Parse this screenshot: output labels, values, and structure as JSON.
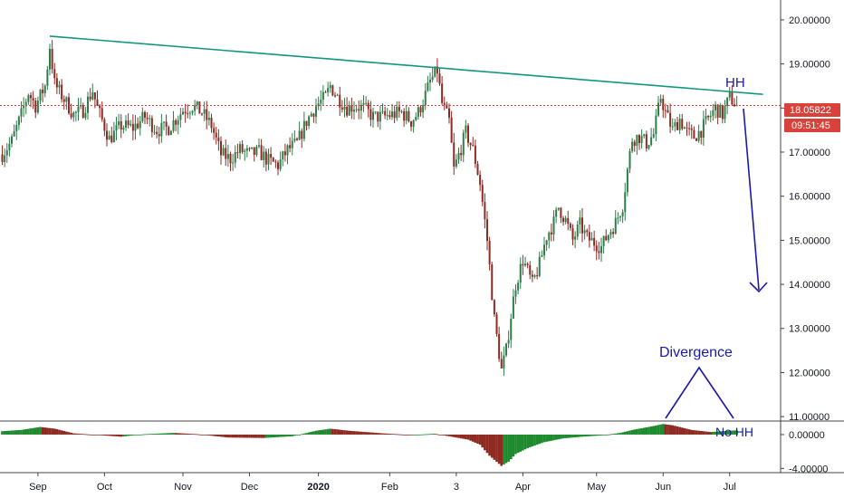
{
  "colors": {
    "up": "#2e7d4a",
    "down": "#8e2a22",
    "trendline": "#13977c",
    "annotation": "#1a1aa8",
    "price_line": "#d9423a",
    "osc_up": "#1e8a2e",
    "osc_down": "#8e2a22",
    "axis_line": "#444444"
  },
  "chart_data": {
    "type": "candlestick",
    "price_axis": {
      "ticks": [
        "20.00000",
        "19.00000",
        "18.00000",
        "17.00000",
        "16.00000",
        "15.00000",
        "14.00000",
        "13.00000",
        "12.00000",
        "11.00000"
      ],
      "ylim": [
        10.9,
        20.45
      ]
    },
    "oscillator_axis": {
      "ticks": [
        "0.00000",
        "-4.00000"
      ],
      "ylim": [
        -4.5,
        1.6
      ]
    },
    "time_axis": {
      "labels": [
        "Sep",
        "Oct",
        "Nov",
        "Dec",
        "2020",
        "Feb",
        "3",
        "Apr",
        "May",
        "Jun",
        "Jul"
      ],
      "bold": [
        "2020"
      ]
    },
    "current_price": "18.05822",
    "countdown": "09:51:45",
    "key_points": [
      {
        "t": 0,
        "v": 16.95
      },
      {
        "t": 4,
        "v": 17.25
      },
      {
        "t": 8,
        "v": 17.85
      },
      {
        "t": 11,
        "v": 18.35
      },
      {
        "t": 14,
        "v": 18.05
      },
      {
        "t": 18,
        "v": 18.5
      },
      {
        "t": 20,
        "v": 19.4
      },
      {
        "t": 22,
        "v": 18.55
      },
      {
        "t": 26,
        "v": 18.2
      },
      {
        "t": 30,
        "v": 17.85
      },
      {
        "t": 34,
        "v": 17.95
      },
      {
        "t": 38,
        "v": 18.4
      },
      {
        "t": 40,
        "v": 18.0
      },
      {
        "t": 45,
        "v": 17.3
      },
      {
        "t": 50,
        "v": 17.6
      },
      {
        "t": 55,
        "v": 17.55
      },
      {
        "t": 60,
        "v": 17.8
      },
      {
        "t": 65,
        "v": 17.5
      },
      {
        "t": 70,
        "v": 17.55
      },
      {
        "t": 76,
        "v": 17.95
      },
      {
        "t": 80,
        "v": 18.05
      },
      {
        "t": 84,
        "v": 17.9
      },
      {
        "t": 88,
        "v": 17.6
      },
      {
        "t": 92,
        "v": 16.95
      },
      {
        "t": 96,
        "v": 16.85
      },
      {
        "t": 100,
        "v": 17.05
      },
      {
        "t": 104,
        "v": 16.95
      },
      {
        "t": 108,
        "v": 17.0
      },
      {
        "t": 112,
        "v": 16.8
      },
      {
        "t": 116,
        "v": 16.7
      },
      {
        "t": 120,
        "v": 17.05
      },
      {
        "t": 124,
        "v": 17.2
      },
      {
        "t": 128,
        "v": 17.7
      },
      {
        "t": 132,
        "v": 18.05
      },
      {
        "t": 136,
        "v": 18.25
      },
      {
        "t": 138,
        "v": 18.5
      },
      {
        "t": 141,
        "v": 18.25
      },
      {
        "t": 145,
        "v": 18.0
      },
      {
        "t": 148,
        "v": 18.05
      },
      {
        "t": 152,
        "v": 18.0
      },
      {
        "t": 156,
        "v": 17.8
      },
      {
        "t": 160,
        "v": 17.8
      },
      {
        "t": 164,
        "v": 17.85
      },
      {
        "t": 168,
        "v": 17.9
      },
      {
        "t": 172,
        "v": 17.7
      },
      {
        "t": 175,
        "v": 17.9
      },
      {
        "t": 178,
        "v": 18.3
      },
      {
        "t": 180,
        "v": 18.6
      },
      {
        "t": 183,
        "v": 18.85
      },
      {
        "t": 185,
        "v": 18.1
      },
      {
        "t": 188,
        "v": 17.7
      },
      {
        "t": 190,
        "v": 16.6
      },
      {
        "t": 193,
        "v": 17.1
      },
      {
        "t": 195,
        "v": 17.45
      },
      {
        "t": 198,
        "v": 17.05
      },
      {
        "t": 201,
        "v": 16.3
      },
      {
        "t": 204,
        "v": 15.0
      },
      {
        "t": 207,
        "v": 13.2
      },
      {
        "t": 210,
        "v": 12.05
      },
      {
        "t": 212,
        "v": 12.5
      },
      {
        "t": 214,
        "v": 13.3
      },
      {
        "t": 216,
        "v": 14.0
      },
      {
        "t": 219,
        "v": 14.55
      },
      {
        "t": 221,
        "v": 14.3
      },
      {
        "t": 223,
        "v": 14.0
      },
      {
        "t": 226,
        "v": 14.45
      },
      {
        "t": 229,
        "v": 15.1
      },
      {
        "t": 232,
        "v": 15.4
      },
      {
        "t": 234,
        "v": 15.75
      },
      {
        "t": 237,
        "v": 15.45
      },
      {
        "t": 240,
        "v": 15.0
      },
      {
        "t": 243,
        "v": 15.35
      },
      {
        "t": 246,
        "v": 15.05
      },
      {
        "t": 249,
        "v": 14.95
      },
      {
        "t": 252,
        "v": 14.85
      },
      {
        "t": 255,
        "v": 15.15
      },
      {
        "t": 258,
        "v": 15.4
      },
      {
        "t": 261,
        "v": 15.8
      },
      {
        "t": 263,
        "v": 16.6
      },
      {
        "t": 265,
        "v": 17.3
      },
      {
        "t": 268,
        "v": 17.35
      },
      {
        "t": 271,
        "v": 17.2
      },
      {
        "t": 274,
        "v": 17.4
      },
      {
        "t": 277,
        "v": 18.25
      },
      {
        "t": 279,
        "v": 17.9
      },
      {
        "t": 282,
        "v": 17.5
      },
      {
        "t": 285,
        "v": 17.75
      },
      {
        "t": 288,
        "v": 17.45
      },
      {
        "t": 291,
        "v": 17.35
      },
      {
        "t": 294,
        "v": 17.5
      },
      {
        "t": 297,
        "v": 17.75
      },
      {
        "t": 300,
        "v": 18.0
      },
      {
        "t": 303,
        "v": 17.85
      },
      {
        "t": 306,
        "v": 18.25
      },
      {
        "t": 309,
        "v": 18.05
      }
    ],
    "trendline": {
      "from": {
        "t": 20,
        "v": 19.63
      },
      "to": {
        "t": 320,
        "v": 18.31
      }
    },
    "oscillator_points": [
      {
        "t": 0,
        "v": 0.4
      },
      {
        "t": 8,
        "v": 0.55
      },
      {
        "t": 16,
        "v": 0.9
      },
      {
        "t": 22,
        "v": 0.7
      },
      {
        "t": 30,
        "v": 0.15
      },
      {
        "t": 40,
        "v": -0.05
      },
      {
        "t": 50,
        "v": -0.25
      },
      {
        "t": 60,
        "v": 0.05
      },
      {
        "t": 72,
        "v": 0.2
      },
      {
        "t": 82,
        "v": 0.05
      },
      {
        "t": 95,
        "v": -0.35
      },
      {
        "t": 110,
        "v": -0.4
      },
      {
        "t": 122,
        "v": -0.2
      },
      {
        "t": 132,
        "v": 0.45
      },
      {
        "t": 138,
        "v": 0.7
      },
      {
        "t": 146,
        "v": 0.45
      },
      {
        "t": 160,
        "v": 0.15
      },
      {
        "t": 172,
        "v": -0.05
      },
      {
        "t": 182,
        "v": 0.1
      },
      {
        "t": 190,
        "v": -0.3
      },
      {
        "t": 196,
        "v": -0.6
      },
      {
        "t": 201,
        "v": -1.2
      },
      {
        "t": 205,
        "v": -2.5
      },
      {
        "t": 210,
        "v": -3.7
      },
      {
        "t": 213,
        "v": -3.2
      },
      {
        "t": 216,
        "v": -2.3
      },
      {
        "t": 221,
        "v": -1.6
      },
      {
        "t": 228,
        "v": -0.9
      },
      {
        "t": 236,
        "v": -0.45
      },
      {
        "t": 244,
        "v": -0.25
      },
      {
        "t": 252,
        "v": -0.1
      },
      {
        "t": 260,
        "v": 0.2
      },
      {
        "t": 266,
        "v": 0.6
      },
      {
        "t": 272,
        "v": 0.9
      },
      {
        "t": 278,
        "v": 1.25
      },
      {
        "t": 282,
        "v": 1.1
      },
      {
        "t": 290,
        "v": 0.55
      },
      {
        "t": 298,
        "v": 0.3
      },
      {
        "t": 305,
        "v": 0.45
      },
      {
        "t": 309,
        "v": 0.5
      }
    ]
  },
  "annotations": {
    "hh": "HH",
    "divergence": "Divergence",
    "no_hh": "No HH"
  }
}
